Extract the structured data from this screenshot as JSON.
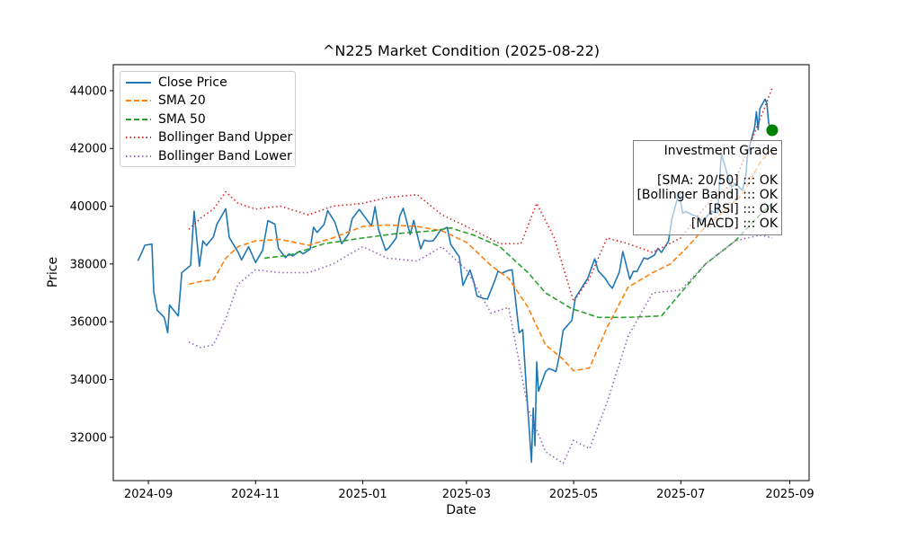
{
  "chart_data": {
    "type": "line",
    "title": "^N225 Market Condition (2025-08-22)",
    "xlabel": "Date",
    "ylabel": "Price",
    "x_range": [
      "2024-08-12",
      "2025-09-12"
    ],
    "ylim": [
      30500,
      44900
    ],
    "x_ticks": [
      {
        "date": "2024-09-01",
        "label": "2024-09"
      },
      {
        "date": "2024-11-01",
        "label": "2024-11"
      },
      {
        "date": "2025-01-01",
        "label": "2025-01"
      },
      {
        "date": "2025-03-01",
        "label": "2025-03"
      },
      {
        "date": "2025-05-01",
        "label": "2025-05"
      },
      {
        "date": "2025-07-01",
        "label": "2025-07"
      },
      {
        "date": "2025-09-01",
        "label": "2025-09"
      }
    ],
    "y_ticks": [
      32000,
      34000,
      36000,
      38000,
      40000,
      42000,
      44000
    ],
    "grid": false,
    "legend_position": "top-left",
    "series": [
      {
        "name": "Close Price",
        "color": "#1f77b4",
        "style": "solid",
        "points": [
          [
            "2024-08-26",
            38110
          ],
          [
            "2024-08-28",
            38370
          ],
          [
            "2024-08-30",
            38650
          ],
          [
            "2024-09-03",
            38690
          ],
          [
            "2024-09-04",
            37050
          ],
          [
            "2024-09-06",
            36400
          ],
          [
            "2024-09-10",
            36150
          ],
          [
            "2024-09-12",
            35620
          ],
          [
            "2024-09-13",
            36580
          ],
          [
            "2024-09-18",
            36200
          ],
          [
            "2024-09-20",
            37700
          ],
          [
            "2024-09-25",
            37950
          ],
          [
            "2024-09-27",
            39830
          ],
          [
            "2024-09-30",
            37920
          ],
          [
            "2024-10-02",
            38800
          ],
          [
            "2024-10-04",
            38640
          ],
          [
            "2024-10-08",
            38940
          ],
          [
            "2024-10-10",
            39380
          ],
          [
            "2024-10-15",
            39910
          ],
          [
            "2024-10-17",
            38920
          ],
          [
            "2024-10-22",
            38410
          ],
          [
            "2024-10-24",
            38140
          ],
          [
            "2024-10-28",
            38600
          ],
          [
            "2024-11-01",
            38050
          ],
          [
            "2024-11-05",
            38470
          ],
          [
            "2024-11-08",
            39500
          ],
          [
            "2024-11-12",
            39380
          ],
          [
            "2024-11-14",
            38540
          ],
          [
            "2024-11-18",
            38220
          ],
          [
            "2024-11-20",
            38350
          ],
          [
            "2024-11-22",
            38280
          ],
          [
            "2024-11-26",
            38440
          ],
          [
            "2024-11-28",
            38350
          ],
          [
            "2024-12-02",
            38510
          ],
          [
            "2024-12-04",
            39270
          ],
          [
            "2024-12-06",
            39090
          ],
          [
            "2024-12-10",
            39370
          ],
          [
            "2024-12-12",
            39850
          ],
          [
            "2024-12-16",
            39460
          ],
          [
            "2024-12-18",
            39080
          ],
          [
            "2024-12-20",
            38700
          ],
          [
            "2024-12-24",
            39040
          ],
          [
            "2024-12-26",
            39570
          ],
          [
            "2024-12-30",
            39890
          ],
          [
            "2025-01-06",
            39310
          ],
          [
            "2025-01-08",
            39980
          ],
          [
            "2025-01-10",
            39190
          ],
          [
            "2025-01-14",
            38470
          ],
          [
            "2025-01-16",
            38570
          ],
          [
            "2025-01-20",
            38900
          ],
          [
            "2025-01-22",
            39650
          ],
          [
            "2025-01-24",
            39930
          ],
          [
            "2025-01-28",
            39020
          ],
          [
            "2025-01-30",
            39510
          ],
          [
            "2025-02-03",
            38520
          ],
          [
            "2025-02-05",
            38830
          ],
          [
            "2025-02-07",
            38790
          ],
          [
            "2025-02-10",
            38800
          ],
          [
            "2025-02-12",
            38960
          ],
          [
            "2025-02-14",
            39150
          ],
          [
            "2025-02-18",
            39270
          ],
          [
            "2025-02-20",
            38680
          ],
          [
            "2025-02-25",
            38240
          ],
          [
            "2025-02-27",
            37260
          ],
          [
            "2025-03-03",
            37790
          ],
          [
            "2025-03-05",
            37420
          ],
          [
            "2025-03-07",
            36890
          ],
          [
            "2025-03-11",
            36800
          ],
          [
            "2025-03-13",
            36790
          ],
          [
            "2025-03-17",
            37400
          ],
          [
            "2025-03-19",
            37750
          ],
          [
            "2025-03-21",
            37680
          ],
          [
            "2025-03-25",
            37780
          ],
          [
            "2025-03-27",
            37800
          ],
          [
            "2025-03-31",
            35620
          ],
          [
            "2025-04-02",
            35730
          ],
          [
            "2025-04-04",
            33780
          ],
          [
            "2025-04-07",
            31140
          ],
          [
            "2025-04-08",
            33010
          ],
          [
            "2025-04-09",
            31710
          ],
          [
            "2025-04-10",
            34610
          ],
          [
            "2025-04-11",
            33590
          ],
          [
            "2025-04-15",
            34270
          ],
          [
            "2025-04-17",
            34380
          ],
          [
            "2025-04-21",
            34280
          ],
          [
            "2025-04-23",
            34870
          ],
          [
            "2025-04-25",
            35700
          ],
          [
            "2025-04-30",
            36050
          ],
          [
            "2025-05-02",
            36830
          ],
          [
            "2025-05-09",
            37500
          ],
          [
            "2025-05-13",
            38180
          ],
          [
            "2025-05-15",
            37760
          ],
          [
            "2025-05-19",
            37500
          ],
          [
            "2025-05-21",
            37300
          ],
          [
            "2025-05-23",
            37160
          ],
          [
            "2025-05-27",
            37720
          ],
          [
            "2025-05-29",
            38430
          ],
          [
            "2025-06-02",
            37470
          ],
          [
            "2025-06-04",
            37750
          ],
          [
            "2025-06-06",
            37740
          ],
          [
            "2025-06-10",
            38210
          ],
          [
            "2025-06-12",
            38170
          ],
          [
            "2025-06-16",
            38310
          ],
          [
            "2025-06-18",
            38540
          ],
          [
            "2025-06-20",
            38400
          ],
          [
            "2025-06-24",
            38790
          ],
          [
            "2025-06-26",
            39580
          ],
          [
            "2025-06-30",
            40480
          ],
          [
            "2025-07-02",
            39760
          ],
          [
            "2025-07-04",
            39810
          ],
          [
            "2025-07-08",
            39690
          ],
          [
            "2025-07-10",
            39650
          ],
          [
            "2025-07-14",
            39460
          ],
          [
            "2025-07-16",
            39660
          ],
          [
            "2025-07-18",
            39820
          ],
          [
            "2025-07-22",
            39770
          ],
          [
            "2025-07-24",
            41830
          ],
          [
            "2025-07-28",
            40990
          ],
          [
            "2025-07-30",
            40660
          ],
          [
            "2025-08-01",
            40800
          ],
          [
            "2025-08-05",
            40550
          ],
          [
            "2025-08-07",
            41060
          ],
          [
            "2025-08-08",
            41820
          ],
          [
            "2025-08-12",
            42720
          ],
          [
            "2025-08-13",
            43270
          ],
          [
            "2025-08-14",
            42650
          ],
          [
            "2025-08-15",
            43380
          ],
          [
            "2025-08-18",
            43710
          ],
          [
            "2025-08-19",
            43550
          ],
          [
            "2025-08-20",
            42890
          ],
          [
            "2025-08-21",
            42610
          ],
          [
            "2025-08-22",
            42630
          ]
        ]
      },
      {
        "name": "SMA 20",
        "color": "#ff7f0e",
        "style": "dashed",
        "points": [
          [
            "2024-09-24",
            37300
          ],
          [
            "2024-10-01",
            37400
          ],
          [
            "2024-10-08",
            37450
          ],
          [
            "2024-10-15",
            38200
          ],
          [
            "2024-10-22",
            38600
          ],
          [
            "2024-11-01",
            38800
          ],
          [
            "2024-11-15",
            38850
          ],
          [
            "2024-12-01",
            38650
          ],
          [
            "2024-12-15",
            38900
          ],
          [
            "2025-01-01",
            39300
          ],
          [
            "2025-01-15",
            39350
          ],
          [
            "2025-02-01",
            39300
          ],
          [
            "2025-02-15",
            39150
          ],
          [
            "2025-03-01",
            38750
          ],
          [
            "2025-03-15",
            37950
          ],
          [
            "2025-03-25",
            37500
          ],
          [
            "2025-04-05",
            36500
          ],
          [
            "2025-04-15",
            35200
          ],
          [
            "2025-04-25",
            34700
          ],
          [
            "2025-05-01",
            34300
          ],
          [
            "2025-05-10",
            34400
          ],
          [
            "2025-05-20",
            35800
          ],
          [
            "2025-06-01",
            37200
          ],
          [
            "2025-06-15",
            37700
          ],
          [
            "2025-06-25",
            38000
          ],
          [
            "2025-07-05",
            38600
          ],
          [
            "2025-07-15",
            39300
          ],
          [
            "2025-07-25",
            39800
          ],
          [
            "2025-08-05",
            40400
          ],
          [
            "2025-08-15",
            41500
          ],
          [
            "2025-08-22",
            42000
          ]
        ]
      },
      {
        "name": "SMA 50",
        "color": "#2ca02c",
        "style": "dashed",
        "points": [
          [
            "2024-11-06",
            38200
          ],
          [
            "2024-11-20",
            38300
          ],
          [
            "2024-12-10",
            38700
          ],
          [
            "2025-01-01",
            38900
          ],
          [
            "2025-01-20",
            39050
          ],
          [
            "2025-02-10",
            39150
          ],
          [
            "2025-02-20",
            39250
          ],
          [
            "2025-03-05",
            39000
          ],
          [
            "2025-03-20",
            38600
          ],
          [
            "2025-04-05",
            37700
          ],
          [
            "2025-04-15",
            37000
          ],
          [
            "2025-04-30",
            36450
          ],
          [
            "2025-05-15",
            36150
          ],
          [
            "2025-06-01",
            36150
          ],
          [
            "2025-06-20",
            36200
          ],
          [
            "2025-07-01",
            37000
          ],
          [
            "2025-07-15",
            38000
          ],
          [
            "2025-08-01",
            38800
          ],
          [
            "2025-08-15",
            39700
          ],
          [
            "2025-08-22",
            40100
          ]
        ]
      },
      {
        "name": "Bollinger Band Upper",
        "color": "#d62728",
        "style": "dotted",
        "points": [
          [
            "2024-09-24",
            39200
          ],
          [
            "2024-10-01",
            39600
          ],
          [
            "2024-10-08",
            39900
          ],
          [
            "2024-10-15",
            40500
          ],
          [
            "2024-10-22",
            40100
          ],
          [
            "2024-11-01",
            39900
          ],
          [
            "2024-11-15",
            40000
          ],
          [
            "2024-12-01",
            39700
          ],
          [
            "2024-12-15",
            40000
          ],
          [
            "2025-01-01",
            40100
          ],
          [
            "2025-01-15",
            40300
          ],
          [
            "2025-02-01",
            40400
          ],
          [
            "2025-02-15",
            39700
          ],
          [
            "2025-03-01",
            39300
          ],
          [
            "2025-03-20",
            38700
          ],
          [
            "2025-04-01",
            38700
          ],
          [
            "2025-04-10",
            40100
          ],
          [
            "2025-04-20",
            38900
          ],
          [
            "2025-05-01",
            36700
          ],
          [
            "2025-05-10",
            37500
          ],
          [
            "2025-05-20",
            38900
          ],
          [
            "2025-06-01",
            38700
          ],
          [
            "2025-06-15",
            38400
          ],
          [
            "2025-07-01",
            38900
          ],
          [
            "2025-07-15",
            40000
          ],
          [
            "2025-08-01",
            40900
          ],
          [
            "2025-08-15",
            43000
          ],
          [
            "2025-08-22",
            44100
          ]
        ]
      },
      {
        "name": "Bollinger Band Lower",
        "color": "#9467bd",
        "style": "dotted",
        "points": [
          [
            "2024-09-24",
            35300
          ],
          [
            "2024-10-01",
            35100
          ],
          [
            "2024-10-08",
            35200
          ],
          [
            "2024-10-15",
            36100
          ],
          [
            "2024-10-22",
            37300
          ],
          [
            "2024-11-01",
            37800
          ],
          [
            "2024-11-15",
            37700
          ],
          [
            "2024-12-01",
            37700
          ],
          [
            "2024-12-15",
            38000
          ],
          [
            "2025-01-01",
            38600
          ],
          [
            "2025-01-15",
            38200
          ],
          [
            "2025-02-01",
            38100
          ],
          [
            "2025-02-15",
            38600
          ],
          [
            "2025-03-01",
            37800
          ],
          [
            "2025-03-15",
            36300
          ],
          [
            "2025-03-25",
            36500
          ],
          [
            "2025-04-05",
            33000
          ],
          [
            "2025-04-15",
            31500
          ],
          [
            "2025-04-25",
            31100
          ],
          [
            "2025-05-01",
            31900
          ],
          [
            "2025-05-10",
            31600
          ],
          [
            "2025-05-20",
            33200
          ],
          [
            "2025-06-01",
            35500
          ],
          [
            "2025-06-15",
            37000
          ],
          [
            "2025-07-01",
            37100
          ],
          [
            "2025-07-15",
            38000
          ],
          [
            "2025-08-01",
            38800
          ],
          [
            "2025-08-15",
            39000
          ],
          [
            "2025-08-22",
            38900
          ]
        ]
      }
    ],
    "marker": {
      "date": "2025-08-22",
      "value": 42630,
      "color": "#008000"
    },
    "annotation": {
      "title": "Investment Grade",
      "lines": [
        "[SMA: 20/50] ::: OK",
        "[Bollinger Band] ::: OK",
        "[RSI] ::: OK",
        "[MACD] ::: OK"
      ]
    }
  }
}
